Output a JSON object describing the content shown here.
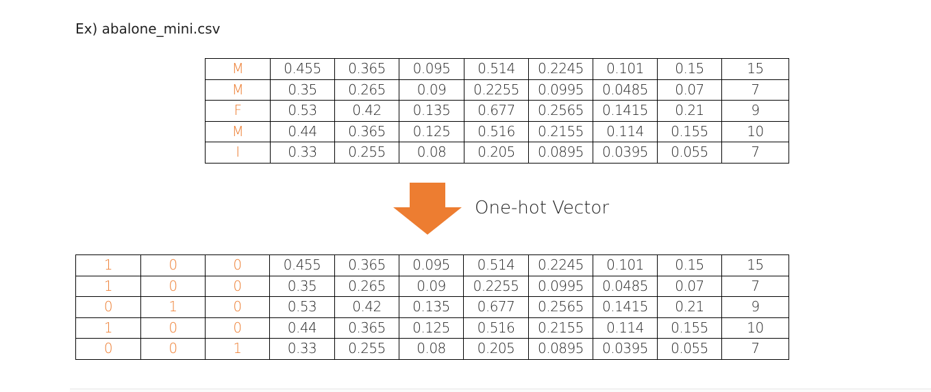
{
  "heading": "Ex) abalone_mini.csv",
  "arrow_label": "One-hot Vector",
  "colors": {
    "category": "#ed7d31",
    "arrow": "#ed7d31",
    "text": "#222222",
    "border": "#000000"
  },
  "arrow_icon": "down-arrow-icon",
  "original_table": {
    "rows": [
      [
        "M",
        "0.455",
        "0.365",
        "0.095",
        "0.514",
        "0.2245",
        "0.101",
        "0.15",
        "15"
      ],
      [
        "M",
        "0.35",
        "0.265",
        "0.09",
        "0.2255",
        "0.0995",
        "0.0485",
        "0.07",
        "7"
      ],
      [
        "F",
        "0.53",
        "0.42",
        "0.135",
        "0.677",
        "0.2565",
        "0.1415",
        "0.21",
        "9"
      ],
      [
        "M",
        "0.44",
        "0.365",
        "0.125",
        "0.516",
        "0.2155",
        "0.114",
        "0.155",
        "10"
      ],
      [
        "I",
        "0.33",
        "0.255",
        "0.08",
        "0.205",
        "0.0895",
        "0.0395",
        "0.055",
        "7"
      ]
    ]
  },
  "onehot_table": {
    "rows": [
      [
        "1",
        "0",
        "0",
        "0.455",
        "0.365",
        "0.095",
        "0.514",
        "0.2245",
        "0.101",
        "0.15",
        "15"
      ],
      [
        "1",
        "0",
        "0",
        "0.35",
        "0.265",
        "0.09",
        "0.2255",
        "0.0995",
        "0.0485",
        "0.07",
        "7"
      ],
      [
        "0",
        "1",
        "0",
        "0.53",
        "0.42",
        "0.135",
        "0.677",
        "0.2565",
        "0.1415",
        "0.21",
        "9"
      ],
      [
        "1",
        "0",
        "0",
        "0.44",
        "0.365",
        "0.125",
        "0.516",
        "0.2155",
        "0.114",
        "0.155",
        "10"
      ],
      [
        "0",
        "0",
        "1",
        "0.33",
        "0.255",
        "0.08",
        "0.205",
        "0.0895",
        "0.0395",
        "0.055",
        "7"
      ]
    ]
  }
}
